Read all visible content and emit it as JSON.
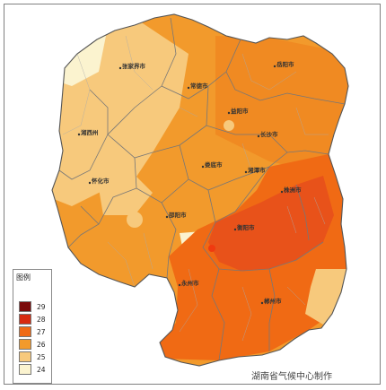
{
  "legend": {
    "title": "图例",
    "items": [
      {
        "value": "29",
        "color": "#7a0a0a"
      },
      {
        "value": "28",
        "color": "#d82a10"
      },
      {
        "value": "27",
        "color": "#f06a14"
      },
      {
        "value": "26",
        "color": "#f29a2c"
      },
      {
        "value": "25",
        "color": "#f7c97c"
      },
      {
        "value": "24",
        "color": "#fbf3cf"
      }
    ]
  },
  "credit": "湖南省气候中心制作",
  "cities": [
    {
      "id": "zhangjiajie",
      "name": "张家界市"
    },
    {
      "id": "changde",
      "name": "常德市"
    },
    {
      "id": "yueyang",
      "name": "岳阳市"
    },
    {
      "id": "jishou",
      "name": "湘西州"
    },
    {
      "id": "yiyang",
      "name": "益阳市"
    },
    {
      "id": "changsha",
      "name": "长沙市"
    },
    {
      "id": "huaihua",
      "name": "怀化市"
    },
    {
      "id": "loudi",
      "name": "娄底市"
    },
    {
      "id": "xiangtan",
      "name": "湘潭市"
    },
    {
      "id": "zhuzhou",
      "name": "株洲市"
    },
    {
      "id": "shaoyang",
      "name": "邵阳市"
    },
    {
      "id": "hengyang",
      "name": "衡阳市"
    },
    {
      "id": "yongzhou",
      "name": "永州市"
    },
    {
      "id": "chenzhou",
      "name": "郴州市"
    }
  ]
}
